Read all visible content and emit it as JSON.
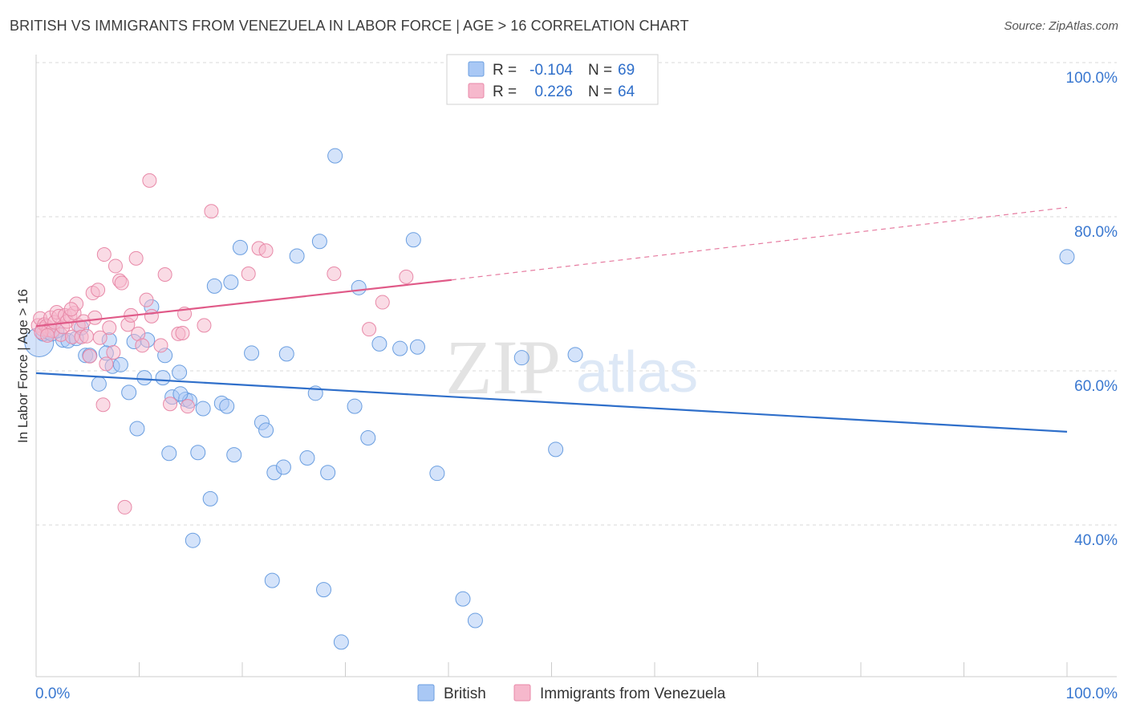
{
  "title": "BRITISH VS IMMIGRANTS FROM VENEZUELA IN LABOR FORCE | AGE > 16 CORRELATION CHART",
  "source": "Source: ZipAtlas.com",
  "watermark": {
    "zip": "ZIP",
    "atlas": "atlas"
  },
  "colors": {
    "british_fill": "#a9c8f5",
    "british_stroke": "#6a9ee0",
    "british_line": "#2f6fca",
    "venezuela_fill": "#f6b8cc",
    "venezuela_stroke": "#e889a8",
    "venezuela_line": "#e05a88",
    "axis_label": "#3a78d0",
    "grid": "#d9d9d9"
  },
  "legend_top": [
    {
      "r_label": "R =",
      "r_value": "-0.104",
      "n_label": "N =",
      "n_value": "69",
      "series": "British"
    },
    {
      "r_label": "R =",
      "r_value": "0.226",
      "n_label": "N =",
      "n_value": "64",
      "series": "Immigrants from Venezuela"
    }
  ],
  "chart_data": {
    "type": "scatter",
    "title": "BRITISH VS IMMIGRANTS FROM VENEZUELA IN LABOR FORCE | AGE > 16 CORRELATION CHART",
    "xlabel": "",
    "ylabel": "In Labor Force | Age > 16",
    "xlim": [
      0,
      100
    ],
    "ylim": [
      20,
      100
    ],
    "x_tick_labels": [
      "0.0%",
      "100.0%"
    ],
    "y_tick_labels": [
      "100.0%",
      "80.0%",
      "60.0%",
      "40.0%"
    ],
    "y_ticks": [
      100,
      80,
      60,
      40
    ],
    "grid": true,
    "legend_position": "bottom-center",
    "series": [
      {
        "name": "British",
        "trend": {
          "x": [
            0,
            100
          ],
          "y": [
            59.7,
            52.1
          ],
          "style": "solid"
        },
        "points": [
          [
            0.3,
            63.7
          ],
          [
            0.7,
            64.8
          ],
          [
            1.2,
            65.0
          ],
          [
            1.5,
            64.8
          ],
          [
            2.6,
            64.0
          ],
          [
            3.1,
            63.9
          ],
          [
            3.9,
            64.2
          ],
          [
            4.4,
            65.6
          ],
          [
            4.8,
            62.0
          ],
          [
            5.2,
            62.0
          ],
          [
            6.1,
            58.3
          ],
          [
            7.1,
            64.0
          ],
          [
            7.4,
            60.6
          ],
          [
            8.2,
            60.8
          ],
          [
            9.0,
            57.2
          ],
          [
            9.5,
            63.8
          ],
          [
            9.8,
            52.5
          ],
          [
            10.5,
            59.1
          ],
          [
            10.8,
            64.0
          ],
          [
            11.2,
            68.3
          ],
          [
            12.3,
            59.1
          ],
          [
            12.5,
            62.0
          ],
          [
            12.9,
            49.3
          ],
          [
            13.2,
            56.6
          ],
          [
            13.9,
            59.8
          ],
          [
            14.5,
            56.3
          ],
          [
            14.9,
            56.1
          ],
          [
            15.2,
            38.0
          ],
          [
            15.7,
            49.4
          ],
          [
            16.2,
            55.1
          ],
          [
            16.9,
            43.4
          ],
          [
            17.3,
            71.0
          ],
          [
            18.0,
            55.8
          ],
          [
            18.5,
            55.4
          ],
          [
            18.9,
            71.5
          ],
          [
            19.2,
            49.1
          ],
          [
            19.8,
            76.0
          ],
          [
            20.9,
            62.3
          ],
          [
            21.9,
            53.3
          ],
          [
            22.3,
            52.3
          ],
          [
            22.9,
            32.8
          ],
          [
            23.1,
            46.8
          ],
          [
            24.0,
            47.5
          ],
          [
            24.3,
            62.2
          ],
          [
            25.3,
            74.9
          ],
          [
            26.3,
            48.7
          ],
          [
            27.1,
            57.1
          ],
          [
            27.5,
            76.8
          ],
          [
            27.9,
            31.6
          ],
          [
            28.3,
            46.8
          ],
          [
            29.0,
            87.9
          ],
          [
            29.6,
            24.8
          ],
          [
            30.9,
            55.4
          ],
          [
            31.3,
            70.8
          ],
          [
            32.2,
            51.3
          ],
          [
            33.3,
            63.5
          ],
          [
            35.3,
            62.9
          ],
          [
            36.6,
            77.0
          ],
          [
            37.0,
            63.1
          ],
          [
            38.9,
            46.7
          ],
          [
            41.4,
            30.4
          ],
          [
            42.6,
            27.6
          ],
          [
            47.1,
            61.7
          ],
          [
            50.4,
            49.8
          ],
          [
            52.3,
            62.1
          ],
          [
            100.0,
            74.8
          ],
          [
            2.0,
            65.2
          ],
          [
            6.8,
            62.3
          ],
          [
            14.0,
            57.0
          ]
        ]
      },
      {
        "name": "Immigrants from Venezuela",
        "trend": {
          "x": [
            0,
            40.3
          ],
          "y": [
            65.8,
            71.8
          ],
          "style": "solid",
          "dashed_to": [
            100,
            81.2
          ]
        },
        "points": [
          [
            0.2,
            65.9
          ],
          [
            0.4,
            66.8
          ],
          [
            0.6,
            65.4
          ],
          [
            0.8,
            66.0
          ],
          [
            1.0,
            65.8
          ],
          [
            1.2,
            65.3
          ],
          [
            1.4,
            66.9
          ],
          [
            1.6,
            65.2
          ],
          [
            1.8,
            66.3
          ],
          [
            2.0,
            67.6
          ],
          [
            2.2,
            67.1
          ],
          [
            2.4,
            64.7
          ],
          [
            2.6,
            65.7
          ],
          [
            2.8,
            67.2
          ],
          [
            3.0,
            66.4
          ],
          [
            3.3,
            67.1
          ],
          [
            3.5,
            64.4
          ],
          [
            3.7,
            67.5
          ],
          [
            3.9,
            68.7
          ],
          [
            4.1,
            65.9
          ],
          [
            4.4,
            64.4
          ],
          [
            4.6,
            66.4
          ],
          [
            4.9,
            64.5
          ],
          [
            5.2,
            61.9
          ],
          [
            5.5,
            70.1
          ],
          [
            5.7,
            66.9
          ],
          [
            6.0,
            70.5
          ],
          [
            6.2,
            64.3
          ],
          [
            6.5,
            55.6
          ],
          [
            6.6,
            75.1
          ],
          [
            6.8,
            60.9
          ],
          [
            7.1,
            65.6
          ],
          [
            7.5,
            62.4
          ],
          [
            7.7,
            73.6
          ],
          [
            8.1,
            71.7
          ],
          [
            8.3,
            71.4
          ],
          [
            8.6,
            42.3
          ],
          [
            8.9,
            66.0
          ],
          [
            9.2,
            67.2
          ],
          [
            9.7,
            74.6
          ],
          [
            9.9,
            64.8
          ],
          [
            10.3,
            63.3
          ],
          [
            10.7,
            69.2
          ],
          [
            11.0,
            84.7
          ],
          [
            11.2,
            67.1
          ],
          [
            12.1,
            63.3
          ],
          [
            12.5,
            72.5
          ],
          [
            13.0,
            55.7
          ],
          [
            13.8,
            64.8
          ],
          [
            14.4,
            67.4
          ],
          [
            14.7,
            55.4
          ],
          [
            16.3,
            65.9
          ],
          [
            17.0,
            80.7
          ],
          [
            20.6,
            72.6
          ],
          [
            21.6,
            75.9
          ],
          [
            22.3,
            75.6
          ],
          [
            28.9,
            72.6
          ],
          [
            32.3,
            65.4
          ],
          [
            33.6,
            68.9
          ],
          [
            35.9,
            72.2
          ],
          [
            0.5,
            65.0
          ],
          [
            1.1,
            64.6
          ],
          [
            3.4,
            68.0
          ],
          [
            14.2,
            64.9
          ]
        ]
      }
    ]
  }
}
